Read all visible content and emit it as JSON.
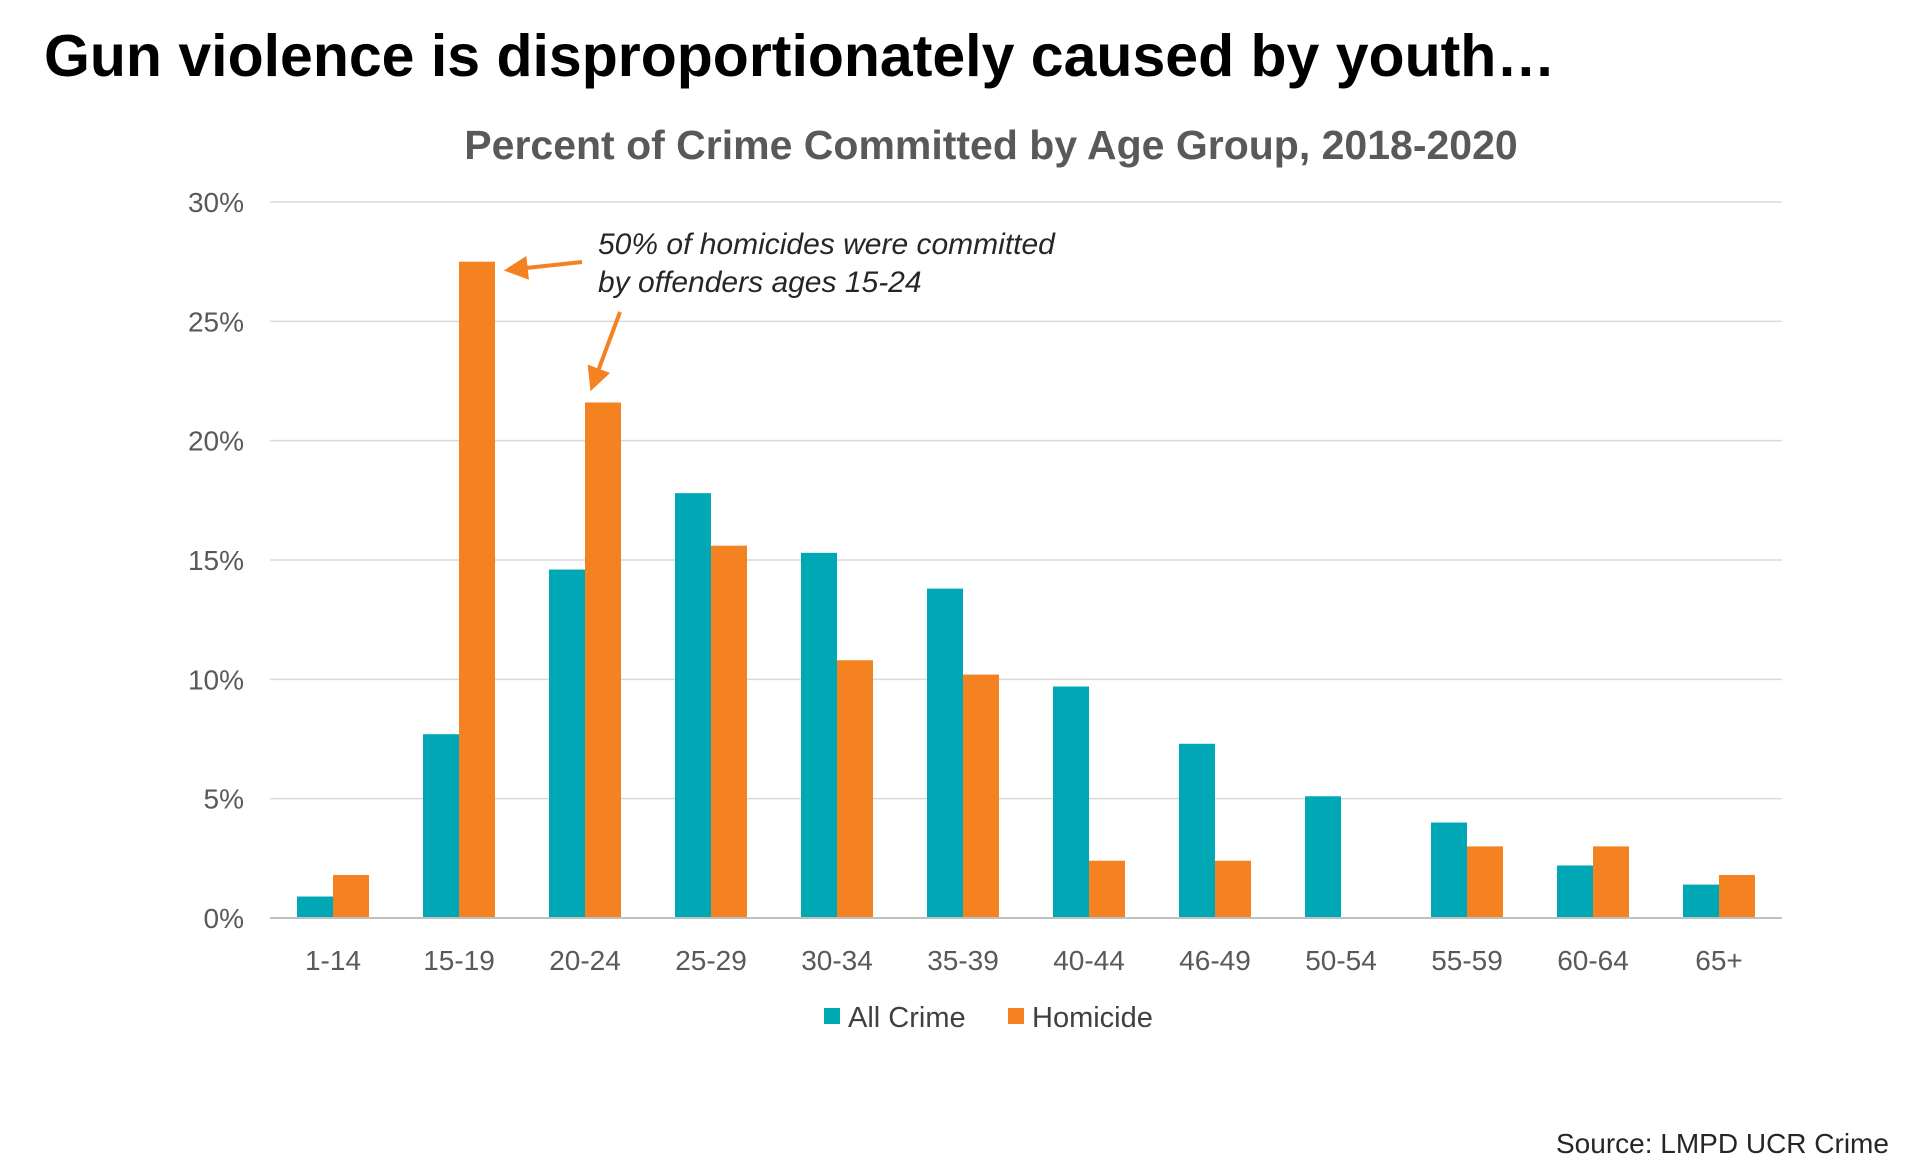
{
  "headline": "Gun violence is disproportionately caused by youth…",
  "source": "Source: LMPD UCR Crime",
  "chart_data": {
    "type": "bar",
    "title": "Percent of Crime Committed by Age Group, 2018-2020",
    "xlabel": "",
    "ylabel": "",
    "ylim": [
      0,
      30
    ],
    "yticks": [
      0,
      5,
      10,
      15,
      20,
      25,
      30
    ],
    "ytick_labels": [
      "0%",
      "5%",
      "10%",
      "15%",
      "20%",
      "25%",
      "30%"
    ],
    "grid": true,
    "legend_position": "bottom",
    "categories": [
      "1-14",
      "15-19",
      "20-24",
      "25-29",
      "30-34",
      "35-39",
      "40-44",
      "46-49",
      "50-54",
      "55-59",
      "60-64",
      "65+"
    ],
    "series": [
      {
        "name": "All Crime",
        "color": "#00A7B5",
        "values": [
          0.9,
          7.7,
          14.6,
          17.8,
          15.3,
          13.8,
          9.7,
          7.3,
          5.1,
          4.0,
          2.2,
          1.4
        ]
      },
      {
        "name": "Homicide",
        "color": "#F58220",
        "values": [
          1.8,
          27.5,
          21.6,
          15.6,
          10.8,
          10.2,
          2.4,
          2.4,
          0,
          3.0,
          3.0,
          1.8
        ]
      }
    ],
    "annotation": {
      "lines": [
        "50% of homicides were committed",
        "by offenders ages 15-24"
      ],
      "arrow_targets": [
        "15-19",
        "20-24"
      ],
      "arrow_color": "#F58220"
    }
  }
}
